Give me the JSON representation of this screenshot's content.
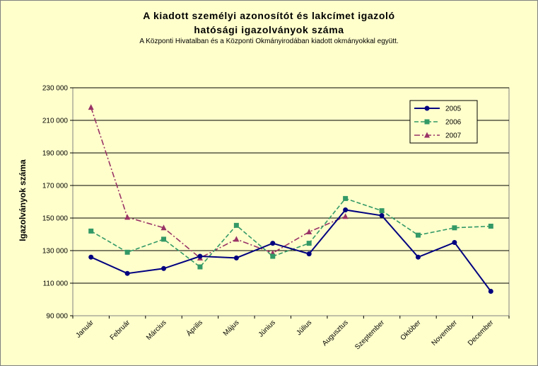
{
  "chart_data": {
    "type": "line",
    "title_line1": "A kiadott személyi azonosítót és lakcímet igazoló",
    "title_line2": "hatósági igazolványok száma",
    "subtitle": "A Központi Hivatalban és a Központi Okmányirodában kiadott okmányokkal együtt.",
    "ylabel": "Igazolványok száma",
    "xlabel": "",
    "ylim": [
      90000,
      230000
    ],
    "yticks": [
      90000,
      110000,
      130000,
      150000,
      170000,
      190000,
      210000,
      230000
    ],
    "ytick_labels": [
      "90 000",
      "110 000",
      "130 000",
      "150 000",
      "170 000",
      "190 000",
      "210 000",
      "230 000"
    ],
    "categories": [
      "Január",
      "Február",
      "Március",
      "Április",
      "Május",
      "Június",
      "Július",
      "Augusztus",
      "Szeptember",
      "Október",
      "November",
      "December"
    ],
    "grid": true,
    "legend_position": "top-right",
    "series": [
      {
        "name": "2005",
        "color": "#000080",
        "marker": "circle",
        "dash": "solid",
        "values": [
          126000,
          116000,
          119000,
          126500,
          125500,
          134500,
          128000,
          155000,
          151500,
          126000,
          135000,
          105000
        ]
      },
      {
        "name": "2006",
        "color": "#339966",
        "marker": "square",
        "dash": "dashed",
        "values": [
          142000,
          129000,
          137000,
          120000,
          145500,
          126500,
          134500,
          162000,
          154500,
          139500,
          144000,
          145000
        ]
      },
      {
        "name": "2007",
        "color": "#993366",
        "marker": "triangle",
        "dash": "dashdot",
        "values": [
          218000,
          150500,
          144000,
          125500,
          137000,
          128500,
          141500,
          151000,
          null,
          null,
          null,
          null
        ]
      }
    ]
  }
}
